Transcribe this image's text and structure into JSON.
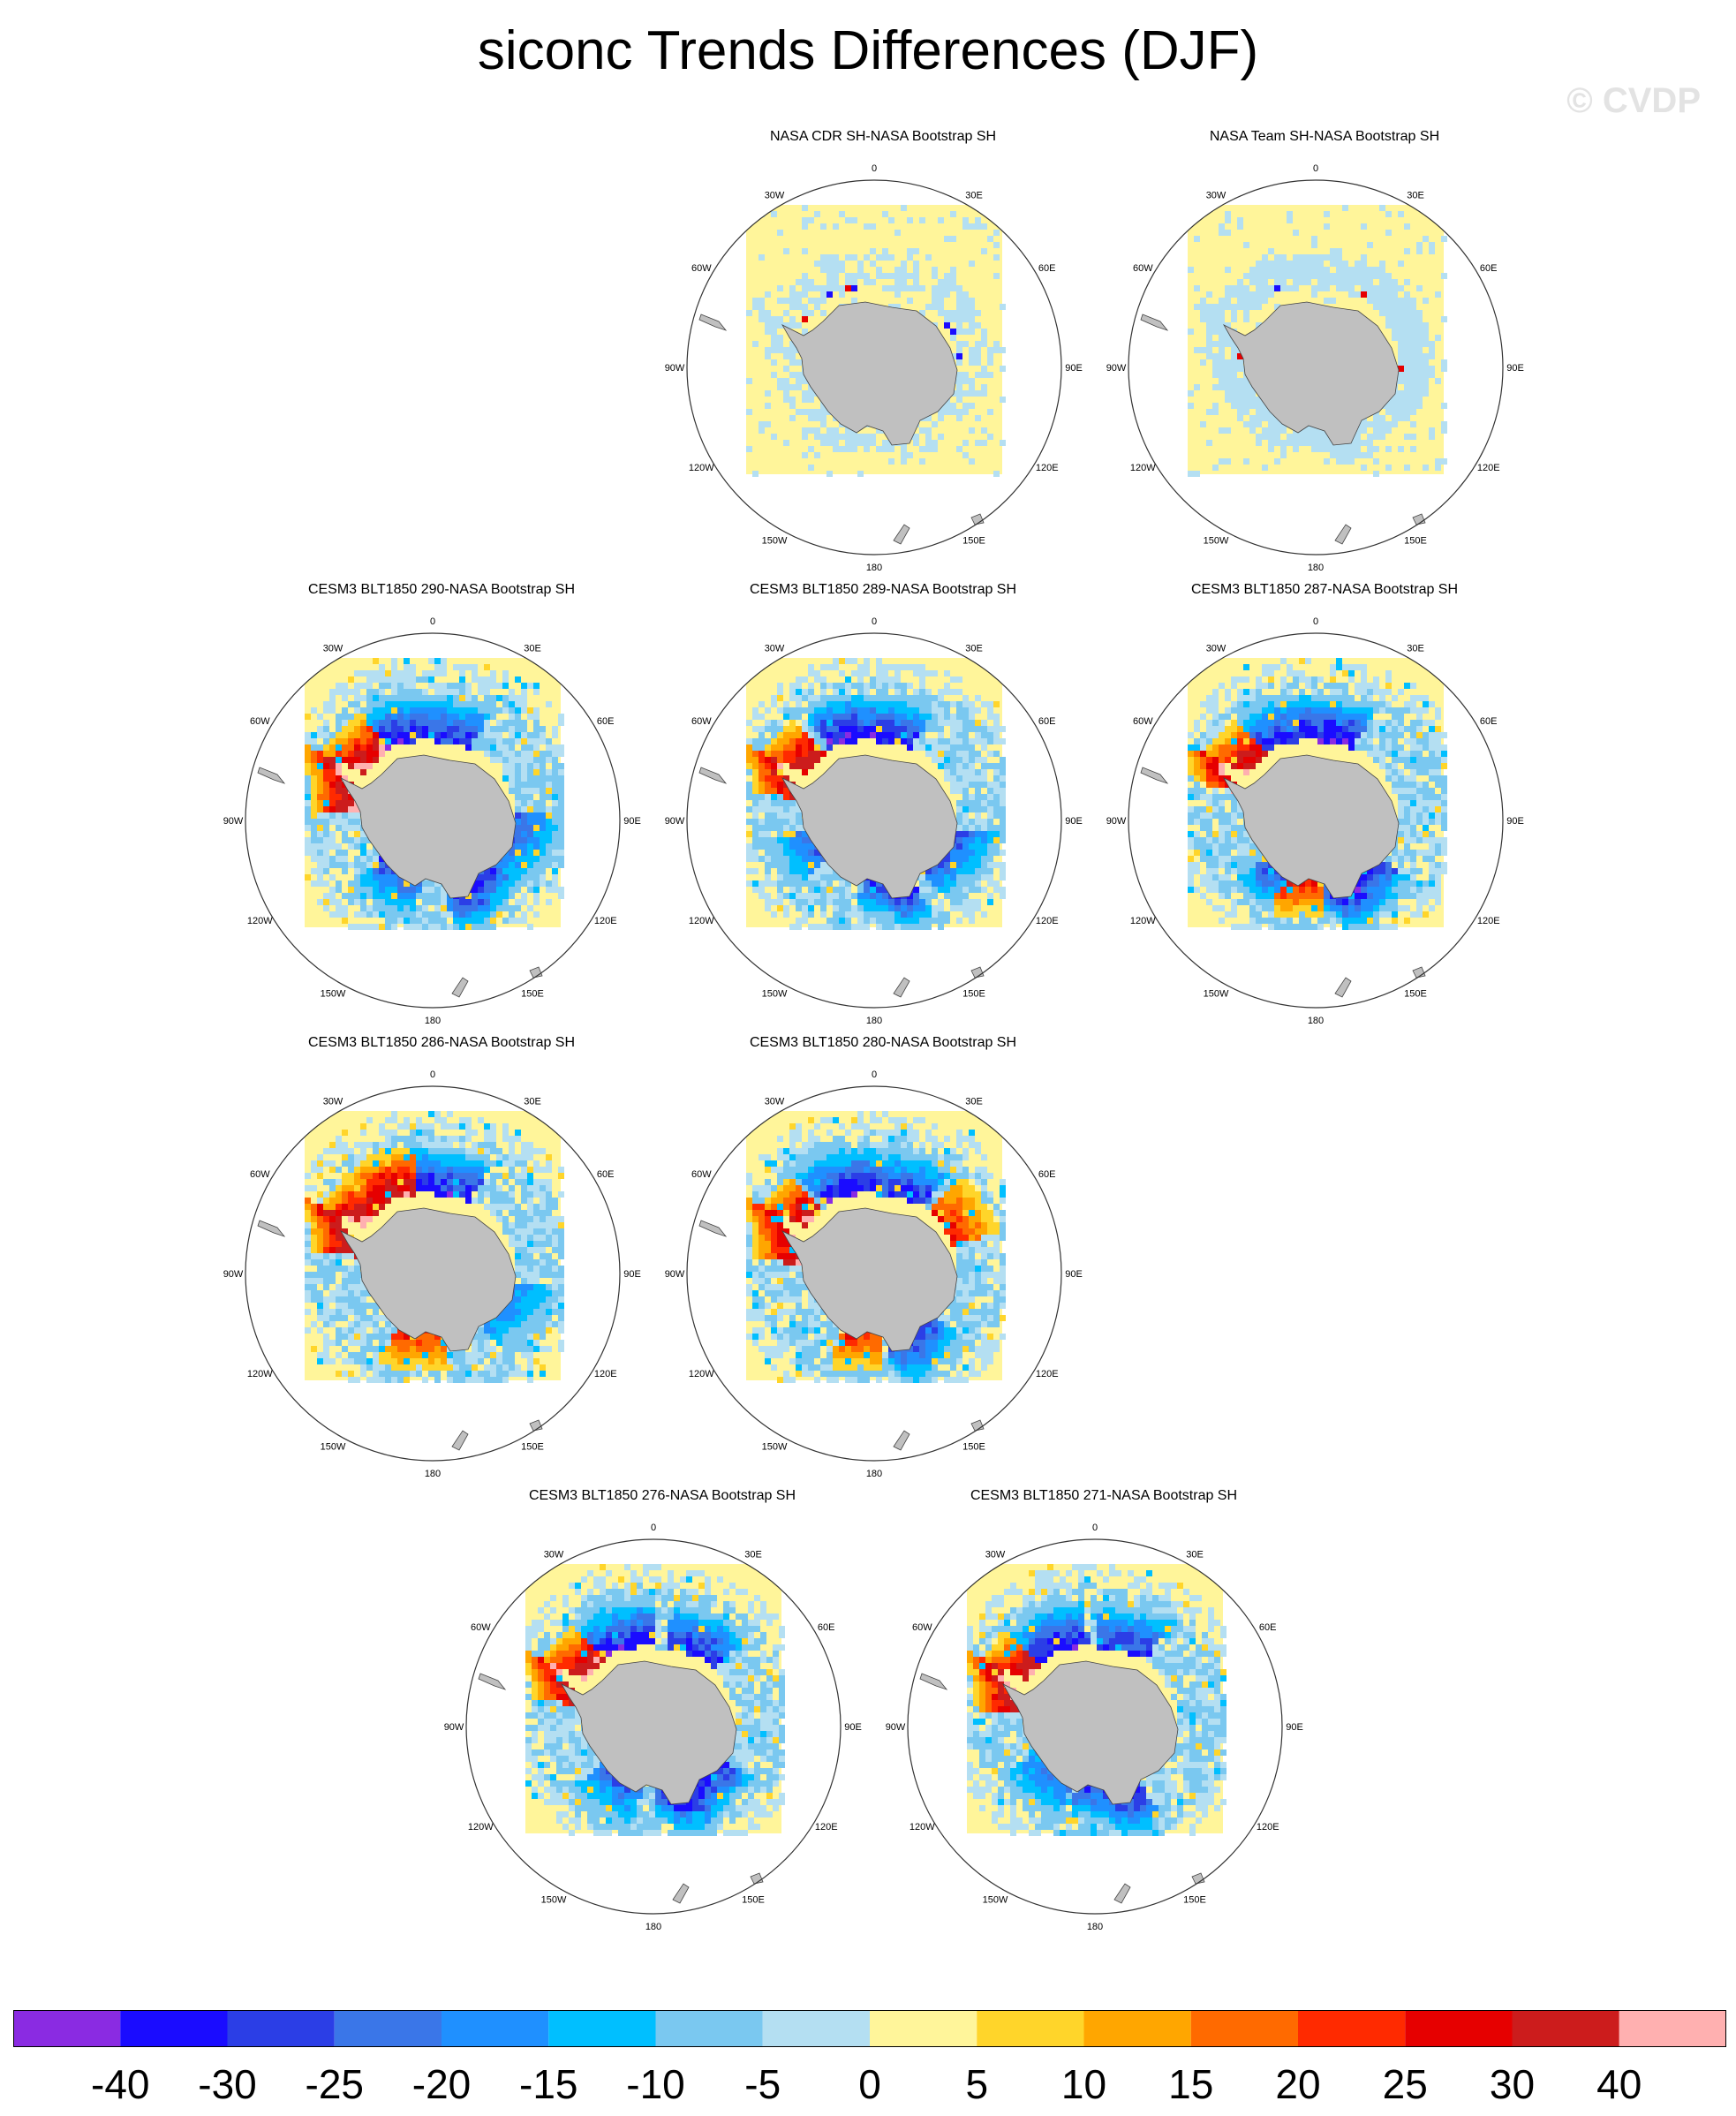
{
  "page": {
    "title": "siconc Trends Differences (DJF)",
    "watermark": "© CVDP"
  },
  "chart_data": {
    "type": "heatmap",
    "projection": "south-polar-stereographic",
    "longitude_labels": [
      "0",
      "30E",
      "60E",
      "90E",
      "120E",
      "150E",
      "180",
      "150W",
      "120W",
      "90W",
      "60W",
      "30W"
    ],
    "panels": [
      {
        "title": "NASA CDR SH-NASA Bootstrap SH",
        "row": 0,
        "col": 1,
        "pattern": "obs_cdr"
      },
      {
        "title": "NASA Team SH-NASA Bootstrap SH",
        "row": 0,
        "col": 2,
        "pattern": "obs_team"
      },
      {
        "title": "CESM3 BLT1850 290-NASA Bootstrap SH",
        "row": 1,
        "col": 0,
        "pattern": "model_a"
      },
      {
        "title": "CESM3 BLT1850 289-NASA Bootstrap SH",
        "row": 1,
        "col": 1,
        "pattern": "model_b"
      },
      {
        "title": "CESM3 BLT1850 287-NASA Bootstrap SH",
        "row": 1,
        "col": 2,
        "pattern": "model_c"
      },
      {
        "title": "CESM3 BLT1850 286-NASA Bootstrap SH",
        "row": 2,
        "col": 0,
        "pattern": "model_d"
      },
      {
        "title": "CESM3 BLT1850 280-NASA Bootstrap SH",
        "row": 2,
        "col": 1,
        "pattern": "model_e"
      },
      {
        "title": "CESM3 BLT1850 276-NASA Bootstrap SH",
        "row": 3,
        "col": 0.5,
        "pattern": "model_f"
      },
      {
        "title": "CESM3 BLT1850 271-NASA Bootstrap SH",
        "row": 3,
        "col": 1.5,
        "pattern": "model_g"
      }
    ],
    "colorbar": {
      "labels": [
        "-40",
        "-30",
        "-25",
        "-20",
        "-15",
        "-10",
        "-5",
        "0",
        "5",
        "10",
        "15",
        "20",
        "25",
        "30",
        "40"
      ],
      "colors": [
        "#8a2be2",
        "#1a0cff",
        "#2b3ee6",
        "#3a76e8",
        "#1f90ff",
        "#00bfff",
        "#7ac8f0",
        "#b4dff2",
        "#fff59a",
        "#ffd52a",
        "#ffa600",
        "#ff6a00",
        "#ff2a00",
        "#e60000",
        "#cc1c1c",
        "#ffb0b0"
      ]
    },
    "map_colors": {
      "land": "#c0c0c0",
      "ocean_outside": "#ffffff",
      "field_neutral": "#fff59a"
    }
  }
}
